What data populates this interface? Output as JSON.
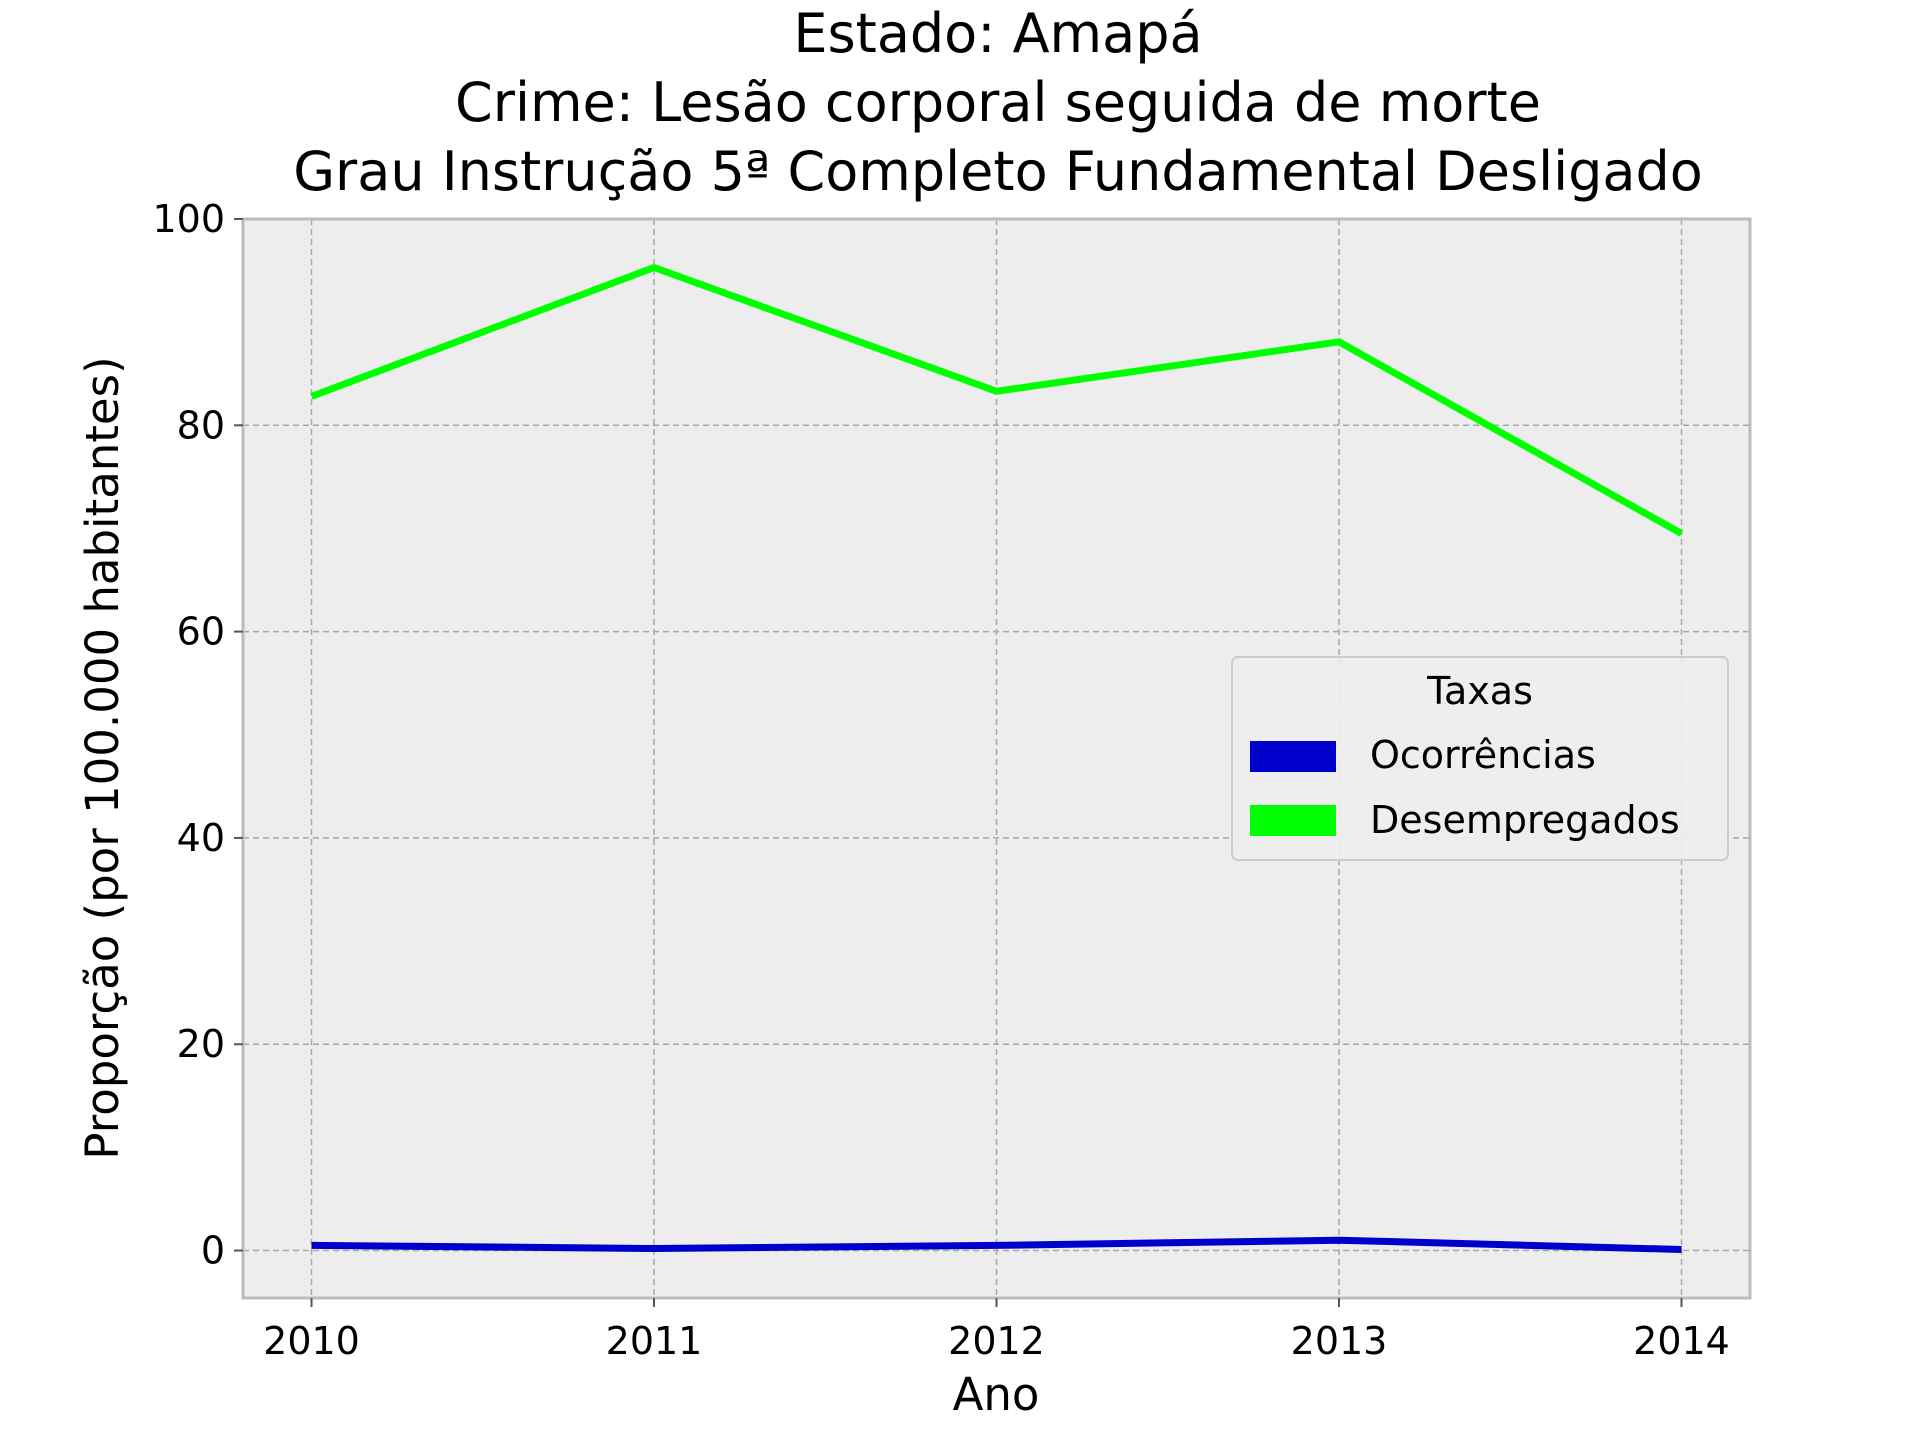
{
  "chart_data": {
    "type": "line",
    "title_lines": [
      "Estado: Amapá",
      "Crime: Lesão corporal seguida de morte",
      "Grau Instrução  5ª Completo Fundamental   Desligado"
    ],
    "xlabel": "Ano",
    "ylabel": "Proporção (por 100.000 habitantes)",
    "x": [
      2010,
      2011,
      2012,
      2013,
      2014
    ],
    "x_tick_labels": [
      "2010",
      "2011",
      "2012",
      "2013",
      "2014"
    ],
    "xlim": [
      2009.8,
      2014.2
    ],
    "ylim": [
      -4.6,
      100
    ],
    "y_ticks": [
      0,
      20,
      40,
      60,
      80,
      100
    ],
    "y_tick_labels": [
      "0",
      "20",
      "40",
      "60",
      "80",
      "100"
    ],
    "grid": true,
    "plot_background": "#ededed",
    "legend": {
      "title": "Taxas",
      "placement": "center-right"
    },
    "series": [
      {
        "name": "Ocorrências",
        "color": "#0000cc",
        "values": [
          0.5,
          0.2,
          0.5,
          1.0,
          0.1
        ]
      },
      {
        "name": "Desempregados",
        "color": "#00ff00",
        "values": [
          82.8,
          95.3,
          83.3,
          88.1,
          69.5
        ]
      }
    ]
  }
}
